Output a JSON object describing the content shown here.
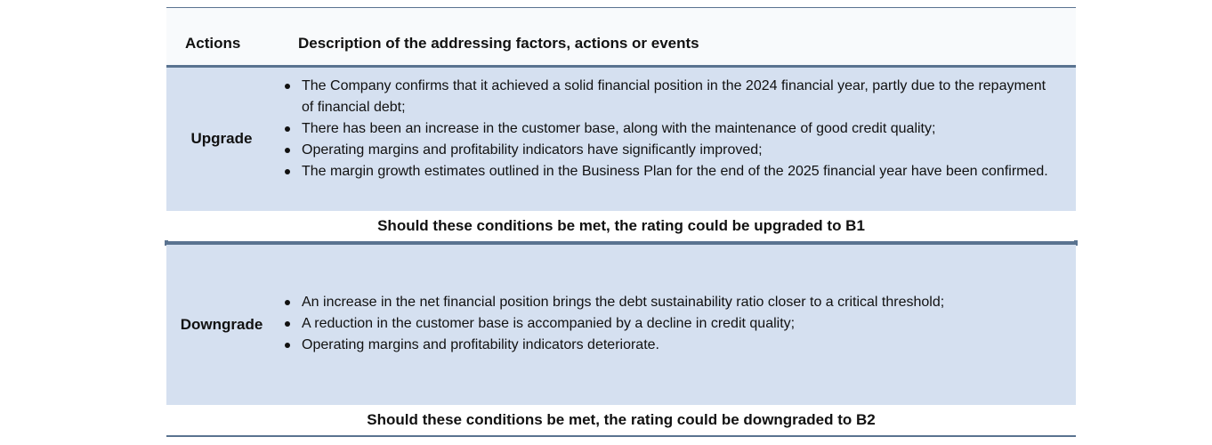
{
  "header": {
    "actions_label": "Actions",
    "description_label": "Description of the addressing factors, actions or events"
  },
  "upgrade": {
    "label": "Upgrade",
    "items": [
      "The Company confirms that it achieved a solid financial position in the 2024 financial year, partly due to the repayment of financial debt;",
      "There has been an increase in the customer base, along with the maintenance of good credit quality;",
      "Operating margins and profitability indicators have significantly improved;",
      "The margin growth estimates outlined in the Business Plan for the end of the 2025 financial year have been confirmed."
    ],
    "conclusion": "Should these conditions be met, the rating could be upgraded to B1"
  },
  "downgrade": {
    "label": "Downgrade",
    "items": [
      "An increase in the net financial position brings the debt sustainability ratio closer to a critical threshold;",
      "A reduction in the customer base is accompanied by a decline in credit quality;",
      "Operating margins and profitability indicators deteriorate."
    ],
    "conclusion": "Should these conditions be met, the rating could be downgraded to B2"
  },
  "colors": {
    "band": "#d5e0f0",
    "rule": "#5a7390",
    "header_bg": "#f8fafc"
  }
}
